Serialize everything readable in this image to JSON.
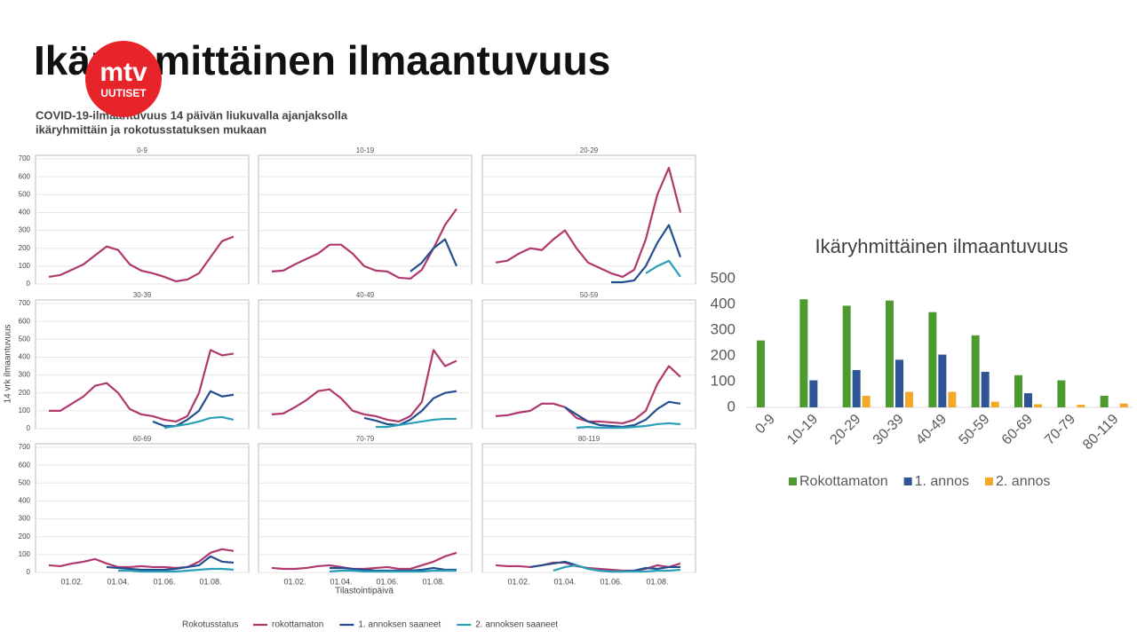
{
  "slide": {
    "title": "Ikäryhmittäinen ilmaantuvuus",
    "logo": {
      "top": "mtv",
      "bottom": "UUTISET"
    }
  },
  "chart_data": [
    {
      "type": "line",
      "title": "COVID-19-ilmaantuvuus 14 päivän liukuvalla ajanjaksolla",
      "subtitle": "ikäryhmittäin ja rokotusstatuksen mukaan",
      "ylabel": "14 vrk ilmaantuvuus",
      "xlabel": "Tilastointipäivä",
      "legend_title": "Rokotusstatus",
      "categories": [
        null,
        null,
        "01.02.",
        null,
        null,
        null,
        "01.04.",
        null,
        null,
        null,
        "01.06.",
        null,
        null,
        null,
        "01.08.",
        null,
        null
      ],
      "ylim": [
        0,
        720
      ],
      "yticks": [
        0,
        100,
        200,
        300,
        400,
        500,
        600,
        700
      ],
      "grid": true,
      "series": [
        {
          "name": "rokottamaton",
          "color": "#b0386c"
        },
        {
          "name": "1. annoksen saaneet",
          "color": "#234f8e"
        },
        {
          "name": "2. annoksen saaneet",
          "color": "#2b9fb8"
        }
      ],
      "panels": [
        {
          "title": "0-9",
          "values": [
            [
              40,
              50,
              80,
              110,
              160,
              210,
              190,
              110,
              75,
              60,
              40,
              15,
              25,
              60,
              150,
              240,
              265
            ],
            [
              null,
              null,
              null,
              null,
              null,
              null,
              null,
              null,
              null,
              null,
              null,
              null,
              null,
              null,
              null,
              null,
              null
            ],
            [
              null,
              null,
              null,
              null,
              null,
              null,
              null,
              null,
              null,
              null,
              null,
              null,
              null,
              null,
              null,
              null,
              null
            ]
          ]
        },
        {
          "title": "10-19",
          "values": [
            [
              70,
              75,
              110,
              140,
              170,
              220,
              220,
              170,
              100,
              75,
              70,
              35,
              30,
              80,
              200,
              330,
              420
            ],
            [
              null,
              null,
              null,
              null,
              null,
              null,
              null,
              null,
              null,
              null,
              null,
              null,
              70,
              120,
              200,
              250,
              100
            ],
            [
              null,
              null,
              null,
              null,
              null,
              null,
              null,
              null,
              null,
              null,
              null,
              null,
              null,
              null,
              null,
              null,
              null
            ]
          ]
        },
        {
          "title": "20-29",
          "values": [
            [
              120,
              130,
              170,
              200,
              190,
              250,
              300,
              200,
              120,
              90,
              60,
              40,
              80,
              250,
              500,
              650,
              400
            ],
            [
              null,
              null,
              null,
              null,
              null,
              null,
              null,
              null,
              null,
              null,
              10,
              10,
              20,
              100,
              230,
              330,
              150
            ],
            [
              null,
              null,
              null,
              null,
              null,
              null,
              null,
              null,
              null,
              null,
              null,
              null,
              null,
              60,
              100,
              130,
              40
            ]
          ]
        },
        {
          "title": "30-39",
          "values": [
            [
              100,
              100,
              140,
              180,
              240,
              255,
              200,
              110,
              80,
              70,
              50,
              40,
              70,
              200,
              440,
              410,
              420
            ],
            [
              null,
              null,
              null,
              null,
              null,
              null,
              null,
              null,
              null,
              40,
              15,
              15,
              50,
              100,
              210,
              180,
              190
            ],
            [
              null,
              null,
              null,
              null,
              null,
              null,
              null,
              null,
              null,
              null,
              5,
              15,
              25,
              40,
              60,
              65,
              50
            ]
          ]
        },
        {
          "title": "40-49",
          "values": [
            [
              80,
              85,
              120,
              160,
              210,
              220,
              170,
              100,
              80,
              70,
              50,
              40,
              70,
              150,
              440,
              350,
              380
            ],
            [
              null,
              null,
              null,
              null,
              null,
              null,
              null,
              null,
              60,
              45,
              25,
              20,
              50,
              100,
              170,
              200,
              210
            ],
            [
              null,
              null,
              null,
              null,
              null,
              null,
              null,
              null,
              null,
              10,
              10,
              20,
              30,
              40,
              50,
              55,
              55
            ]
          ]
        },
        {
          "title": "50-59",
          "values": [
            [
              70,
              75,
              90,
              100,
              140,
              140,
              120,
              60,
              40,
              40,
              35,
              30,
              50,
              100,
              250,
              350,
              290
            ],
            [
              null,
              null,
              null,
              null,
              null,
              null,
              120,
              80,
              40,
              20,
              15,
              10,
              20,
              50,
              110,
              150,
              140
            ],
            [
              null,
              null,
              null,
              null,
              null,
              null,
              null,
              5,
              10,
              5,
              5,
              5,
              10,
              15,
              25,
              30,
              25
            ]
          ]
        },
        {
          "title": "60-69",
          "values": [
            [
              40,
              35,
              50,
              60,
              75,
              50,
              30,
              30,
              35,
              30,
              30,
              25,
              30,
              60,
              110,
              130,
              120
            ],
            [
              null,
              null,
              null,
              null,
              null,
              30,
              25,
              20,
              15,
              15,
              15,
              20,
              30,
              40,
              90,
              60,
              55
            ],
            [
              null,
              null,
              null,
              null,
              null,
              null,
              10,
              10,
              5,
              5,
              5,
              5,
              10,
              15,
              20,
              20,
              15
            ]
          ]
        },
        {
          "title": "70-79",
          "values": [
            [
              25,
              20,
              20,
              25,
              35,
              40,
              30,
              20,
              20,
              25,
              30,
              20,
              20,
              40,
              60,
              90,
              110
            ],
            [
              null,
              null,
              null,
              null,
              null,
              25,
              25,
              20,
              15,
              10,
              10,
              10,
              10,
              15,
              25,
              15,
              15
            ],
            [
              null,
              null,
              null,
              null,
              null,
              5,
              10,
              10,
              5,
              5,
              5,
              5,
              5,
              5,
              10,
              10,
              10
            ]
          ]
        },
        {
          "title": "80-119",
          "values": [
            [
              40,
              35,
              35,
              30,
              40,
              55,
              55,
              35,
              25,
              20,
              15,
              10,
              10,
              20,
              40,
              30,
              50
            ],
            [
              null,
              null,
              null,
              30,
              40,
              50,
              60,
              40,
              20,
              10,
              5,
              5,
              10,
              25,
              20,
              30,
              30
            ],
            [
              null,
              null,
              null,
              null,
              null,
              10,
              30,
              40,
              20,
              10,
              5,
              5,
              5,
              5,
              10,
              10,
              15
            ]
          ]
        }
      ]
    },
    {
      "type": "bar",
      "title": "Ikäryhmittäinen ilmaantuvuus",
      "categories": [
        "0-9",
        "10-19",
        "20-29",
        "30-39",
        "40-49",
        "50-59",
        "60-69",
        "70-79",
        "80-119"
      ],
      "ylim": [
        0,
        500
      ],
      "yticks": [
        0,
        100,
        200,
        300,
        400,
        500
      ],
      "grid": false,
      "legend": "bottom",
      "series": [
        {
          "name": "Rokottamaton",
          "color": "#4e9a2f",
          "values": [
            260,
            420,
            395,
            415,
            370,
            280,
            125,
            105,
            45
          ]
        },
        {
          "name": "1. annos",
          "color": "#2f5597",
          "values": [
            null,
            105,
            145,
            185,
            205,
            138,
            55,
            null,
            null
          ]
        },
        {
          "name": "2. annos",
          "color": "#f4a82a",
          "values": [
            null,
            null,
            45,
            60,
            60,
            22,
            12,
            10,
            15
          ]
        }
      ]
    }
  ]
}
